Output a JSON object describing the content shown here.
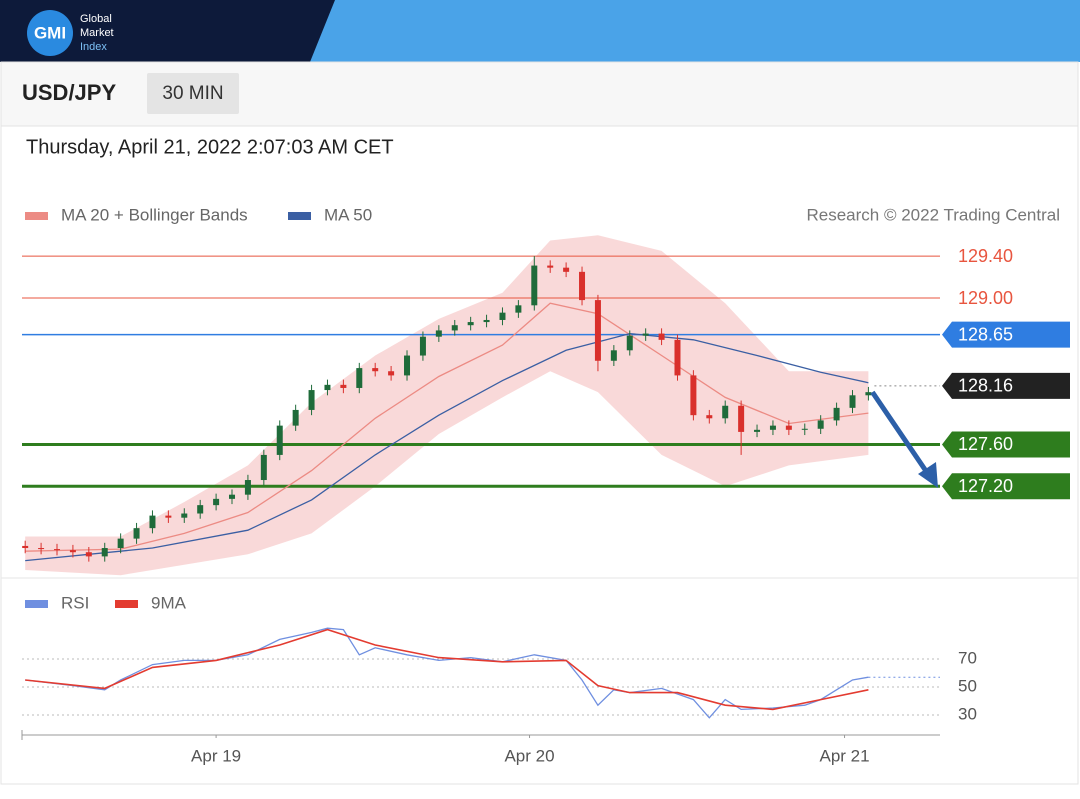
{
  "header": {
    "logo": "GMI",
    "brand": [
      "Global",
      "Market",
      "Index"
    ]
  },
  "toolbar": {
    "symbol": "USD/JPY",
    "interval": "30 MIN"
  },
  "chart_data": [
    {
      "type": "candlestick",
      "subtitle": "Thursday, April 21, 2022 2:07:03 AM CET",
      "annotation": "Research © 2022 Trading Central",
      "up_color": "#1f6b3a",
      "down_color": "#d9302c",
      "xlim": [
        -0.2,
        57.5
      ],
      "ylim": [
        126.4,
        129.65
      ],
      "open": [
        126.63,
        126.61,
        126.6,
        126.59,
        126.57,
        126.53,
        126.61,
        126.7,
        126.8,
        126.92,
        126.9,
        126.94,
        127.02,
        127.08,
        127.12,
        127.26,
        127.5,
        127.78,
        127.93,
        128.12,
        128.17,
        128.14,
        128.33,
        128.3,
        128.26,
        128.45,
        128.63,
        128.69,
        128.74,
        128.77,
        128.79,
        128.86,
        128.93,
        129.31,
        129.29,
        129.25,
        128.98,
        128.4,
        128.5,
        128.64,
        128.66,
        128.6,
        128.26,
        127.88,
        127.85,
        127.97,
        127.72,
        127.74,
        127.78,
        127.74,
        127.75,
        127.83,
        127.95,
        128.07
      ],
      "high": [
        126.68,
        126.66,
        126.65,
        126.64,
        126.62,
        126.66,
        126.75,
        126.85,
        126.97,
        126.97,
        126.99,
        127.07,
        127.13,
        127.17,
        127.31,
        127.55,
        127.83,
        127.98,
        128.17,
        128.22,
        128.22,
        128.38,
        128.38,
        128.35,
        128.5,
        128.68,
        128.74,
        128.79,
        128.82,
        128.84,
        128.91,
        128.98,
        129.4,
        129.36,
        129.34,
        129.3,
        129.03,
        128.55,
        128.69,
        128.71,
        128.71,
        128.65,
        128.31,
        127.93,
        128.02,
        128.02,
        127.79,
        127.83,
        127.83,
        127.8,
        127.88,
        128.0,
        128.12,
        128.15
      ],
      "low": [
        126.56,
        126.55,
        126.54,
        126.52,
        126.48,
        126.48,
        126.56,
        126.65,
        126.75,
        126.85,
        126.85,
        126.89,
        126.97,
        127.03,
        127.07,
        127.21,
        127.45,
        127.73,
        127.88,
        128.07,
        128.09,
        128.09,
        128.25,
        128.21,
        128.21,
        128.4,
        128.58,
        128.64,
        128.69,
        128.72,
        128.74,
        128.81,
        128.88,
        129.24,
        129.2,
        128.93,
        128.3,
        128.35,
        128.45,
        128.59,
        128.55,
        128.21,
        127.83,
        127.8,
        127.8,
        127.5,
        127.67,
        127.69,
        127.69,
        127.69,
        127.7,
        127.78,
        127.9,
        128.02
      ],
      "close": [
        126.61,
        126.6,
        126.59,
        126.57,
        126.53,
        126.61,
        126.7,
        126.8,
        126.92,
        126.9,
        126.94,
        127.02,
        127.08,
        127.12,
        127.26,
        127.5,
        127.78,
        127.93,
        128.12,
        128.17,
        128.14,
        128.33,
        128.3,
        128.26,
        128.45,
        128.63,
        128.69,
        128.74,
        128.77,
        128.79,
        128.86,
        128.93,
        129.31,
        129.29,
        129.25,
        128.98,
        128.4,
        128.5,
        128.64,
        128.66,
        128.6,
        128.26,
        127.88,
        127.85,
        127.97,
        127.72,
        127.74,
        127.78,
        127.74,
        127.75,
        127.83,
        127.95,
        128.07,
        128.1
      ],
      "bands": {
        "color": "#f7cccc",
        "x": [
          0,
          6,
          10,
          14,
          18,
          22,
          26,
          30,
          33,
          36,
          40,
          44,
          48,
          53
        ],
        "upper": [
          126.72,
          126.72,
          127.05,
          127.4,
          128.0,
          128.45,
          128.8,
          129.05,
          129.55,
          129.6,
          129.45,
          128.95,
          128.3,
          128.3
        ],
        "lower": [
          126.4,
          126.35,
          126.45,
          126.55,
          126.75,
          127.2,
          127.7,
          128.05,
          128.3,
          128.1,
          127.5,
          127.2,
          127.4,
          127.5
        ]
      },
      "series": [
        {
          "name": "MA 20 + Bollinger Bands",
          "color": "#ec8b84",
          "x": [
            0,
            6,
            10,
            14,
            18,
            22,
            26,
            30,
            33,
            36,
            40,
            44,
            48,
            53
          ],
          "values": [
            126.58,
            126.6,
            126.75,
            126.95,
            127.35,
            127.85,
            128.25,
            128.55,
            128.95,
            128.85,
            128.45,
            128.05,
            127.8,
            127.9
          ]
        },
        {
          "name": "MA 50",
          "color": "#3b5fa3",
          "x": [
            0,
            8,
            14,
            18,
            22,
            26,
            30,
            34,
            38,
            42,
            46,
            50,
            53
          ],
          "values": [
            126.49,
            126.61,
            126.78,
            127.07,
            127.5,
            127.88,
            128.21,
            128.5,
            128.66,
            128.6,
            128.45,
            128.29,
            128.19
          ]
        }
      ],
      "levels": [
        {
          "value": 129.4,
          "label": "129.40",
          "color": "#e8553f",
          "label_box": false,
          "line_width": 1
        },
        {
          "value": 129.0,
          "label": "129.00",
          "color": "#e8553f",
          "label_box": false,
          "line_width": 1
        },
        {
          "value": 128.65,
          "label": "128.65",
          "color": "#2f7de1",
          "label_box": true,
          "line_width": 1.5
        },
        {
          "value": 128.16,
          "label": "128.16",
          "color": "#222222",
          "label_box": true,
          "line_width": 1,
          "dashed": true
        },
        {
          "value": 127.6,
          "label": "127.60",
          "color": "#2e7d1e",
          "label_box": true,
          "line_width": 3
        },
        {
          "value": 127.2,
          "label": "127.20",
          "color": "#2e7d1e",
          "label_box": true,
          "line_width": 3
        }
      ]
    },
    {
      "type": "line",
      "xlim": [
        -0.2,
        57.5
      ],
      "ylim": [
        20,
        100
      ],
      "yticks": [
        30,
        50,
        70
      ],
      "grid": true,
      "xticks": [
        {
          "value": 12,
          "label": "Apr 19"
        },
        {
          "value": 31.7,
          "label": "Apr 20"
        },
        {
          "value": 51.5,
          "label": "Apr 21"
        }
      ],
      "series": [
        {
          "name": "RSI",
          "color": "#6f8fe0",
          "x": [
            0,
            3,
            5,
            6,
            8,
            10,
            12,
            14,
            16,
            18,
            19,
            20,
            21,
            22,
            24,
            26,
            28,
            30,
            32,
            34,
            35,
            36,
            37,
            38,
            40,
            42,
            43,
            44,
            45,
            47,
            49,
            50,
            52,
            53
          ],
          "values": [
            55,
            51,
            48,
            55,
            66,
            69,
            69,
            73,
            84,
            89,
            92,
            91,
            73,
            78,
            73,
            69,
            71,
            68,
            73,
            69,
            55,
            37,
            48,
            46,
            49,
            41,
            28,
            41,
            34,
            35,
            37,
            41,
            55,
            57
          ]
        },
        {
          "name": "9MA",
          "color": "#e33b30",
          "x": [
            0,
            5,
            8,
            12,
            16,
            19,
            22,
            26,
            30,
            34,
            36,
            38,
            41,
            44,
            47,
            50,
            53
          ],
          "values": [
            55,
            49,
            64,
            69,
            80,
            91,
            80,
            71,
            68,
            69,
            51,
            46,
            46,
            37,
            34,
            41,
            48
          ]
        }
      ]
    }
  ]
}
